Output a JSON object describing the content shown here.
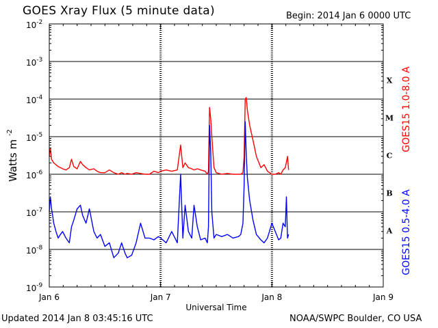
{
  "header": {
    "title": "GOES Xray Flux (5 minute data)",
    "begin": "Begin:  2014 Jan 6 0000 UTC"
  },
  "footer": {
    "updated": "Updated 2014 Jan  8 03:45:16 UTC",
    "credit": "NOAA/SWPC Boulder, CO USA"
  },
  "chart_data": {
    "type": "line",
    "title": "GOES Xray Flux (5 minute data)",
    "xlabel": "Universal Time",
    "ylabel": "Watts m",
    "ylabel_sup": "-2",
    "yscale": "log",
    "ylim": [
      1e-09,
      0.01
    ],
    "xlim": [
      0,
      3
    ],
    "x_ticks": [
      {
        "x": 0,
        "label": "Jan 6"
      },
      {
        "x": 1,
        "label": "Jan 7"
      },
      {
        "x": 2,
        "label": "Jan 8"
      },
      {
        "x": 3,
        "label": "Jan 9"
      }
    ],
    "y_ticks": [
      {
        "exp": -9,
        "base": "10",
        "sup": "-9"
      },
      {
        "exp": -8,
        "base": "10",
        "sup": "-8"
      },
      {
        "exp": -7,
        "base": "10",
        "sup": "-7"
      },
      {
        "exp": -6,
        "base": "10",
        "sup": "-6"
      },
      {
        "exp": -5,
        "base": "10",
        "sup": "-5"
      },
      {
        "exp": -4,
        "base": "10",
        "sup": "-4"
      },
      {
        "exp": -3,
        "base": "10",
        "sup": "-3"
      },
      {
        "exp": -2,
        "base": "10",
        "sup": "-2"
      }
    ],
    "flare_classes": [
      {
        "label": "A",
        "band": [
          -8,
          -7
        ]
      },
      {
        "label": "B",
        "band": [
          -7,
          -6
        ]
      },
      {
        "label": "C",
        "band": [
          -6,
          -5
        ]
      },
      {
        "label": "M",
        "band": [
          -5,
          -4
        ]
      },
      {
        "label": "X",
        "band": [
          -4,
          -3
        ]
      }
    ],
    "grid": "horizontal at each decade",
    "series": [
      {
        "name": "GOES15 1.0-8.0 A",
        "color": "#ff0000",
        "x": [
          0.0,
          0.01,
          0.02,
          0.04,
          0.06,
          0.08,
          0.1,
          0.12,
          0.15,
          0.18,
          0.2,
          0.22,
          0.25,
          0.28,
          0.3,
          0.33,
          0.36,
          0.4,
          0.43,
          0.46,
          0.5,
          0.54,
          0.58,
          0.62,
          0.65,
          0.68,
          0.7,
          0.74,
          0.78,
          0.82,
          0.86,
          0.9,
          0.94,
          0.98,
          1.0,
          1.05,
          1.1,
          1.15,
          1.18,
          1.2,
          1.22,
          1.25,
          1.28,
          1.3,
          1.33,
          1.36,
          1.4,
          1.42,
          1.43,
          1.44,
          1.45,
          1.46,
          1.48,
          1.5,
          1.55,
          1.6,
          1.65,
          1.7,
          1.72,
          1.74,
          1.75,
          1.76,
          1.77,
          1.78,
          1.8,
          1.83,
          1.86,
          1.9,
          1.93,
          1.96,
          2.0,
          2.03,
          2.06,
          2.08,
          2.1,
          2.12,
          2.14,
          2.15
        ],
        "y": [
          3e-06,
          5e-06,
          2.5e-06,
          2e-06,
          1.8e-06,
          1.6e-06,
          1.5e-06,
          1.4e-06,
          1.3e-06,
          1.5e-06,
          2.5e-06,
          1.6e-06,
          1.4e-06,
          2.2e-06,
          1.8e-06,
          1.5e-06,
          1.3e-06,
          1.4e-06,
          1.2e-06,
          1.1e-06,
          1.1e-06,
          1.3e-06,
          1.1e-06,
          1e-06,
          1.1e-06,
          1e-06,
          1.05e-06,
          1e-06,
          1.1e-06,
          1.05e-06,
          1e-06,
          1e-06,
          1.2e-06,
          1.1e-06,
          1.2e-06,
          1.3e-06,
          1.2e-06,
          1.3e-06,
          6e-06,
          1.5e-06,
          2e-06,
          1.5e-06,
          1.4e-06,
          1.3e-06,
          1.4e-06,
          1.3e-06,
          1.2e-06,
          1e-06,
          1.2e-06,
          6e-05,
          3e-05,
          1e-05,
          1.5e-06,
          1.1e-06,
          1e-06,
          1.05e-06,
          1e-06,
          1e-06,
          1e-06,
          1.1e-06,
          3e-06,
          0.0001,
          0.00011,
          5e-05,
          2e-05,
          8e-06,
          3e-06,
          1.5e-06,
          1.8e-06,
          1.2e-06,
          1e-06,
          1e-06,
          1.1e-06,
          1e-06,
          1.3e-06,
          1.5e-06,
          3e-06,
          1.3e-06
        ]
      },
      {
        "name": "GOES15 0.5-4.0 A",
        "color": "#0000ff",
        "x": [
          0.0,
          0.01,
          0.02,
          0.03,
          0.04,
          0.06,
          0.08,
          0.1,
          0.12,
          0.15,
          0.18,
          0.2,
          0.22,
          0.25,
          0.28,
          0.3,
          0.33,
          0.36,
          0.4,
          0.43,
          0.46,
          0.5,
          0.54,
          0.58,
          0.62,
          0.65,
          0.68,
          0.7,
          0.74,
          0.78,
          0.82,
          0.86,
          0.9,
          0.94,
          0.98,
          1.0,
          1.05,
          1.1,
          1.15,
          1.18,
          1.2,
          1.22,
          1.25,
          1.28,
          1.3,
          1.33,
          1.36,
          1.4,
          1.42,
          1.43,
          1.44,
          1.45,
          1.46,
          1.48,
          1.5,
          1.55,
          1.6,
          1.65,
          1.7,
          1.72,
          1.74,
          1.75,
          1.76,
          1.77,
          1.78,
          1.8,
          1.83,
          1.86,
          1.9,
          1.93,
          1.96,
          2.0,
          2.03,
          2.06,
          2.08,
          2.1,
          2.12,
          2.13,
          2.14,
          2.15
        ],
        "y": [
          1e-07,
          2.5e-07,
          1.2e-07,
          8e-08,
          5e-08,
          3e-08,
          2e-08,
          2.5e-08,
          3e-08,
          2e-08,
          1.5e-08,
          4e-08,
          6e-08,
          1.2e-07,
          1.5e-07,
          8e-08,
          5e-08,
          1.2e-07,
          3e-08,
          2e-08,
          2.5e-08,
          1.2e-08,
          1.5e-08,
          6e-09,
          8e-09,
          1.5e-08,
          8e-09,
          6e-09,
          7e-09,
          1.5e-08,
          5e-08,
          2e-08,
          2e-08,
          1.8e-08,
          2.2e-08,
          2e-08,
          1.5e-08,
          3e-08,
          1.5e-08,
          1e-06,
          2e-08,
          1.5e-07,
          3e-08,
          2e-08,
          1.5e-07,
          4e-08,
          1.8e-08,
          2e-08,
          1.5e-08,
          4e-08,
          2e-05,
          4e-06,
          1e-07,
          2e-08,
          2.5e-08,
          2.2e-08,
          2.5e-08,
          2e-08,
          2.2e-08,
          2.5e-08,
          5e-08,
          5e-07,
          2.5e-05,
          3e-06,
          8e-07,
          2e-07,
          6e-08,
          2.5e-08,
          1.8e-08,
          1.5e-08,
          2e-08,
          5e-08,
          3e-08,
          1.8e-08,
          2e-08,
          5e-08,
          4e-08,
          2.5e-07,
          2e-08,
          2.5e-08
        ]
      }
    ]
  }
}
